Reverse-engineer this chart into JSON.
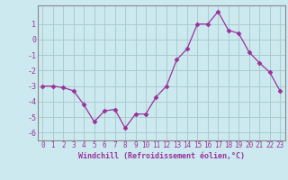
{
  "x": [
    0,
    1,
    2,
    3,
    4,
    5,
    6,
    7,
    8,
    9,
    10,
    11,
    12,
    13,
    14,
    15,
    16,
    17,
    18,
    19,
    20,
    21,
    22,
    23
  ],
  "y": [
    -3.0,
    -3.0,
    -3.1,
    -3.3,
    -4.2,
    -5.3,
    -4.6,
    -4.5,
    -5.7,
    -4.8,
    -4.8,
    -3.7,
    -3.0,
    -1.3,
    -0.6,
    1.0,
    1.0,
    1.8,
    0.6,
    0.4,
    -0.8,
    -1.5,
    -2.1,
    -3.3
  ],
  "line_color": "#993399",
  "marker": "D",
  "marker_size": 2.5,
  "bg_color": "#cce9f0",
  "grid_color": "#aacccc",
  "xlabel": "Windchill (Refroidissement éolien,°C)",
  "ylim": [
    -6.5,
    2.2
  ],
  "xlim": [
    -0.5,
    23.5
  ],
  "yticks": [
    1,
    0,
    -1,
    -2,
    -3,
    -4,
    -5,
    -6
  ],
  "xticks": [
    0,
    1,
    2,
    3,
    4,
    5,
    6,
    7,
    8,
    9,
    10,
    11,
    12,
    13,
    14,
    15,
    16,
    17,
    18,
    19,
    20,
    21,
    22,
    23
  ],
  "tick_fontsize": 5.5,
  "xlabel_fontsize": 6.0
}
